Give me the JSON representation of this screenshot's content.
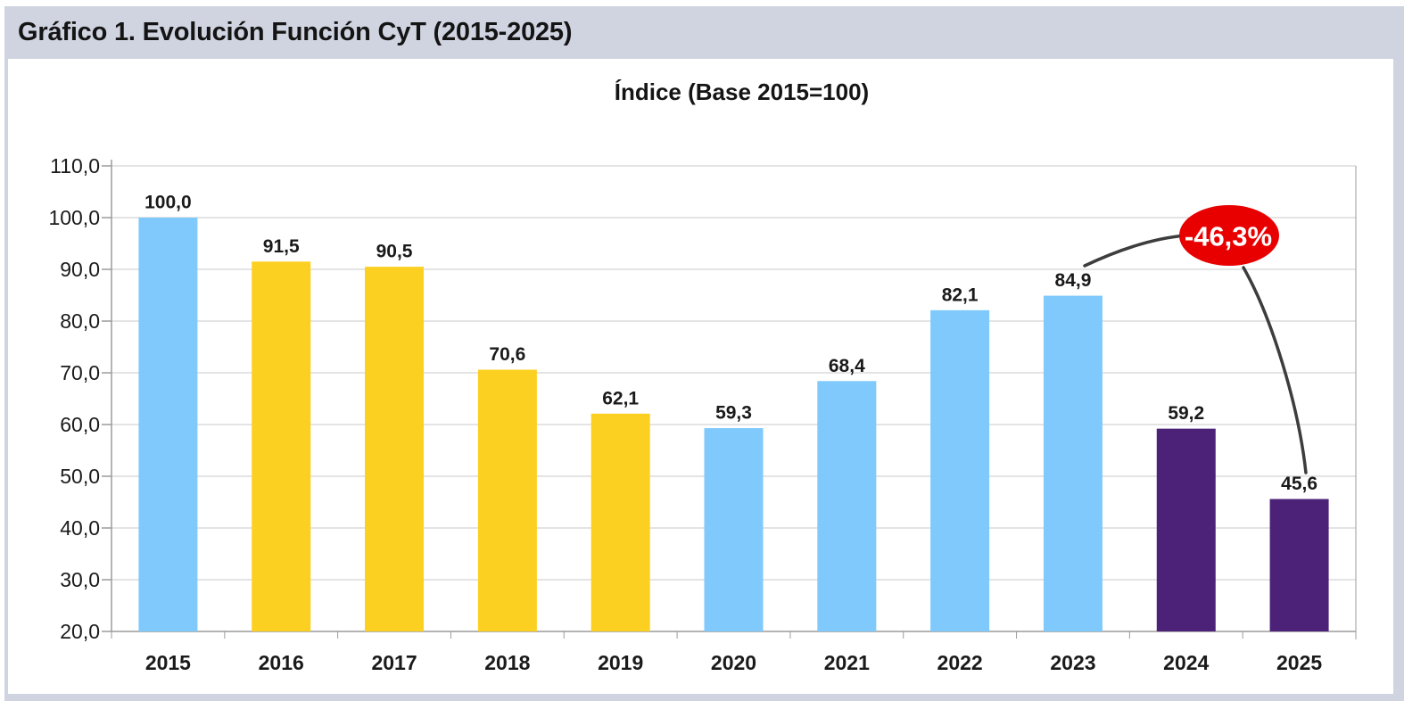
{
  "figure": {
    "title": "Gráfico 1. Evolución Función CyT (2015-2025)"
  },
  "chart_data": {
    "type": "bar",
    "title": "Índice (Base 2015=100)",
    "categories": [
      "2015",
      "2016",
      "2017",
      "2018",
      "2019",
      "2020",
      "2021",
      "2022",
      "2023",
      "2024",
      "2025"
    ],
    "values": [
      100.0,
      91.5,
      90.5,
      70.6,
      62.1,
      59.3,
      68.4,
      82.1,
      84.9,
      59.2,
      45.6
    ],
    "value_labels": [
      "100,0",
      "91,5",
      "90,5",
      "70,6",
      "62,1",
      "59,3",
      "68,4",
      "82,1",
      "84,9",
      "59,2",
      "45,6"
    ],
    "bar_colors": [
      "#7fc9fc",
      "#fcd020",
      "#fcd020",
      "#fcd020",
      "#fcd020",
      "#7fc9fc",
      "#7fc9fc",
      "#7fc9fc",
      "#7fc9fc",
      "#4b2277",
      "#4b2277"
    ],
    "ylim": [
      20,
      110
    ],
    "ytick_step": 10,
    "ytick_labels": [
      "20,0",
      "30,0",
      "40,0",
      "50,0",
      "60,0",
      "70,0",
      "80,0",
      "90,0",
      "100,0",
      "110,0"
    ],
    "grid": true,
    "legend": null,
    "annotation": {
      "label": "-46,3%",
      "fill_color": "#e80000",
      "text_color": "#ffffff",
      "connects": [
        "2023",
        "2025"
      ]
    }
  },
  "colors": {
    "band_background": "#d0d4e1",
    "panel_background": "#ffffff",
    "gridline": "#c9c9c9",
    "axis": "#9b9b9b",
    "text": "#1a1a1a"
  }
}
